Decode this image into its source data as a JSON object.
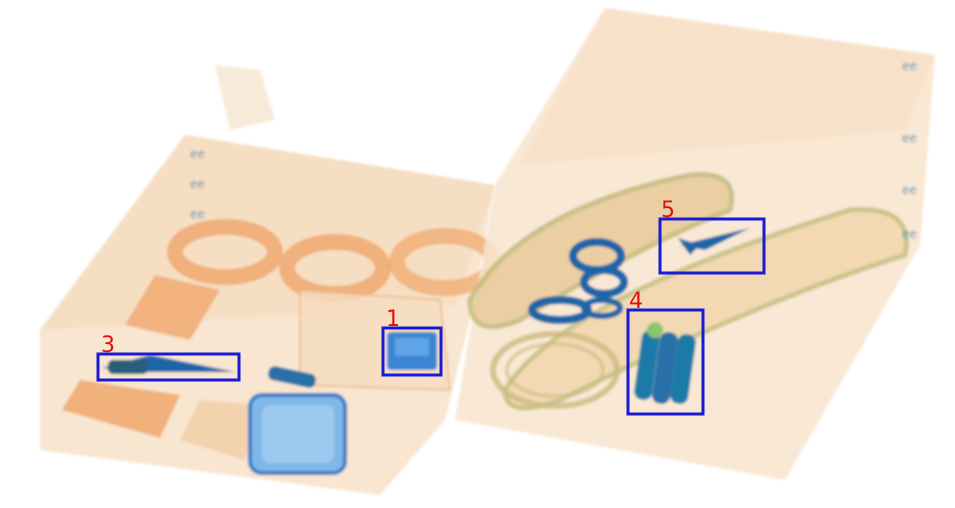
{
  "image": {
    "kind": "x-ray-baggage-scan",
    "background": "#ffffff"
  },
  "colors": {
    "organic": "#f3c79a",
    "organic_dark": "#e89a5a",
    "metal_blue": "#1f66a8",
    "inorganic_green": "#7fb87a",
    "box": "#1a1ad6",
    "label": "#e01010"
  },
  "detections": [
    {
      "label": "1",
      "object": "electronic-device-icon"
    },
    {
      "label": "3",
      "object": "knife-icon"
    },
    {
      "label": "4",
      "object": "battery-pack-icon"
    },
    {
      "label": "5",
      "object": "scissors-icon"
    }
  ]
}
